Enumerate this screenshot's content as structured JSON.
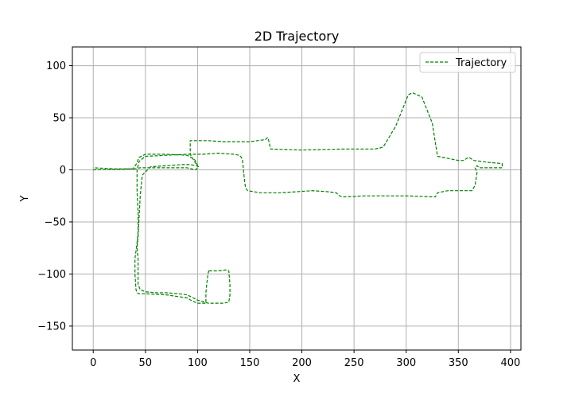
{
  "chart_data": {
    "type": "line",
    "title": "2D Trajectory",
    "xlabel": "X",
    "ylabel": "Y",
    "xlim": [
      -20,
      410
    ],
    "ylim": [
      -173,
      118
    ],
    "xticks": [
      0,
      50,
      100,
      150,
      200,
      250,
      300,
      350,
      400
    ],
    "yticks": [
      -150,
      -100,
      -50,
      0,
      50,
      100
    ],
    "grid": true,
    "legend_position": "top-right",
    "colors": {
      "series": "#008000",
      "grid": "#b0b0b0",
      "axes": "#000000"
    },
    "series": [
      {
        "name": "Trajectory",
        "style": "dashed",
        "x": [
          0,
          38,
          41,
          44,
          50,
          70,
          90,
          97,
          99,
          100,
          97,
          93,
          93,
          97,
          110,
          125,
          150,
          165,
          167,
          168,
          170,
          200,
          240,
          270,
          275,
          278,
          290,
          298,
          302,
          306,
          315,
          325,
          330,
          350,
          355,
          358,
          360,
          365,
          380,
          392,
          392,
          380,
          370,
          368,
          366,
          368,
          366,
          363,
          355,
          340,
          330,
          328,
          300,
          260,
          240,
          236,
          233,
          225,
          210,
          195,
          180,
          160,
          148,
          146,
          145,
          144,
          143,
          142,
          140,
          135,
          120,
          105,
          90,
          70,
          50,
          44,
          42,
          42,
          43,
          43,
          42,
          41,
          40,
          40,
          41,
          42,
          44,
          50,
          70,
          90,
          95,
          100,
          104,
          108,
          108,
          109,
          110,
          111,
          111,
          112,
          113,
          120,
          128,
          130,
          131,
          131,
          130,
          125,
          110,
          100,
          90,
          82,
          70,
          60,
          50,
          45,
          43,
          43,
          43,
          42,
          43,
          44,
          45,
          47,
          55,
          70,
          85,
          93,
          99,
          101,
          98,
          90,
          75,
          60,
          45,
          40,
          20,
          0
        ],
        "y": [
          0,
          1,
          5,
          12,
          15,
          15,
          14,
          10,
          7,
          4,
          8,
          15,
          28,
          28,
          28,
          27,
          27,
          29,
          31,
          29,
          20,
          19,
          20,
          20,
          21,
          22,
          42,
          62,
          72,
          74,
          70,
          45,
          13,
          9,
          9,
          11,
          12,
          9,
          7,
          6,
          2,
          2,
          2,
          4,
          2,
          -2,
          -15,
          -20,
          -20,
          -20,
          -22,
          -26,
          -25,
          -25,
          -26,
          -25,
          -22,
          -21,
          -20,
          -21,
          -22,
          -22,
          -20,
          -17,
          -10,
          0,
          10,
          12,
          14,
          15,
          16,
          15,
          15,
          14,
          13,
          8,
          0,
          -20,
          -40,
          -60,
          -70,
          -78,
          -85,
          -100,
          -115,
          -118,
          -119,
          -119,
          -120,
          -123,
          -126,
          -128,
          -128,
          -128,
          -118,
          -108,
          -100,
          -96,
          -97,
          -97,
          -97,
          -97,
          -96,
          -97,
          -110,
          -120,
          -127,
          -128,
          -128,
          -125,
          -120,
          -119,
          -118,
          -118,
          -117,
          -115,
          -110,
          -100,
          -85,
          -75,
          -65,
          -45,
          -25,
          -5,
          3,
          4,
          5,
          5,
          4,
          3,
          0,
          2,
          2,
          2,
          2,
          1,
          1,
          2
        ]
      }
    ]
  }
}
